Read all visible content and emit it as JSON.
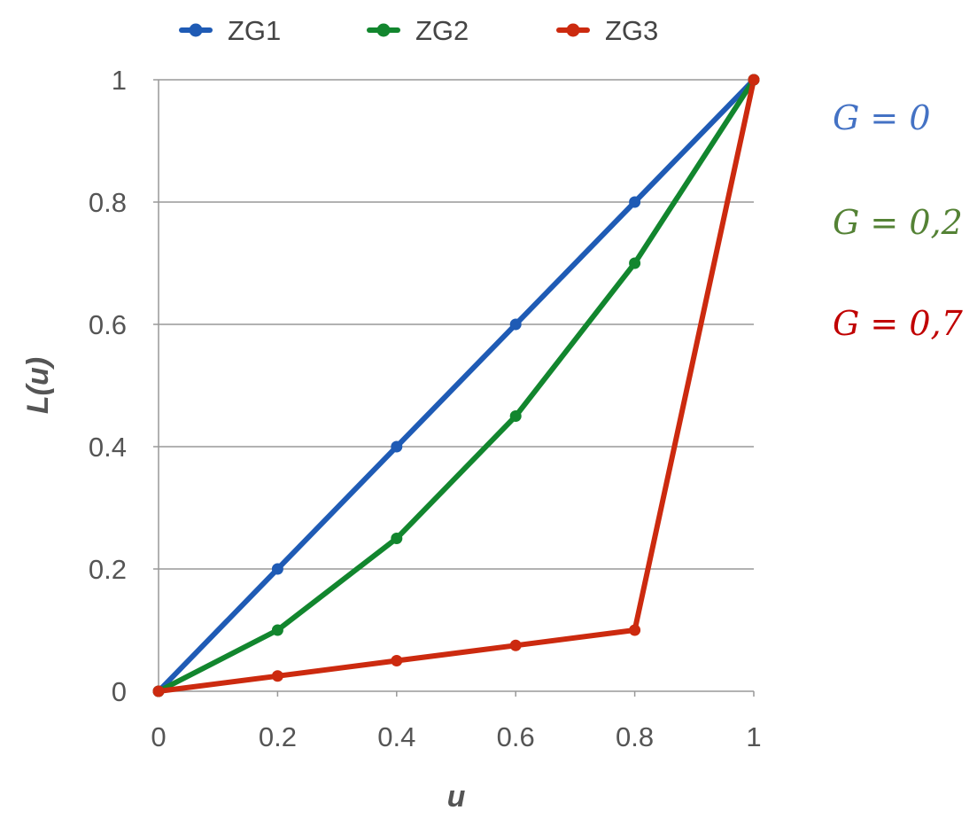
{
  "chart_data": {
    "type": "line",
    "title": "",
    "xlabel": "u",
    "ylabel": "L(u)",
    "xlim": [
      0,
      1
    ],
    "ylim": [
      0,
      1
    ],
    "x_ticks": [
      "0",
      "0.2",
      "0.4",
      "0.6",
      "0.8",
      "1"
    ],
    "y_ticks": [
      "0",
      "0.2",
      "0.4",
      "0.6",
      "0.8",
      "1"
    ],
    "grid": "horizontal",
    "legend_position": "top",
    "x": [
      0,
      0.2,
      0.4,
      0.6,
      0.8,
      1
    ],
    "series": [
      {
        "name": "ZG1",
        "color": "#1f5bb5",
        "values": [
          0,
          0.2,
          0.4,
          0.6,
          0.8,
          1
        ]
      },
      {
        "name": "ZG2",
        "color": "#12862e",
        "values": [
          0,
          0.1,
          0.25,
          0.45,
          0.7,
          1
        ]
      },
      {
        "name": "ZG3",
        "color": "#cc2a0f",
        "values": [
          0,
          0.025,
          0.05,
          0.075,
          0.1,
          1
        ]
      }
    ],
    "annotations": [
      {
        "text": "G = 0",
        "color": "#4472c4"
      },
      {
        "text": "G = 0,2",
        "color": "#548235"
      },
      {
        "text": "G = 0,7",
        "color": "#c00000"
      }
    ]
  }
}
